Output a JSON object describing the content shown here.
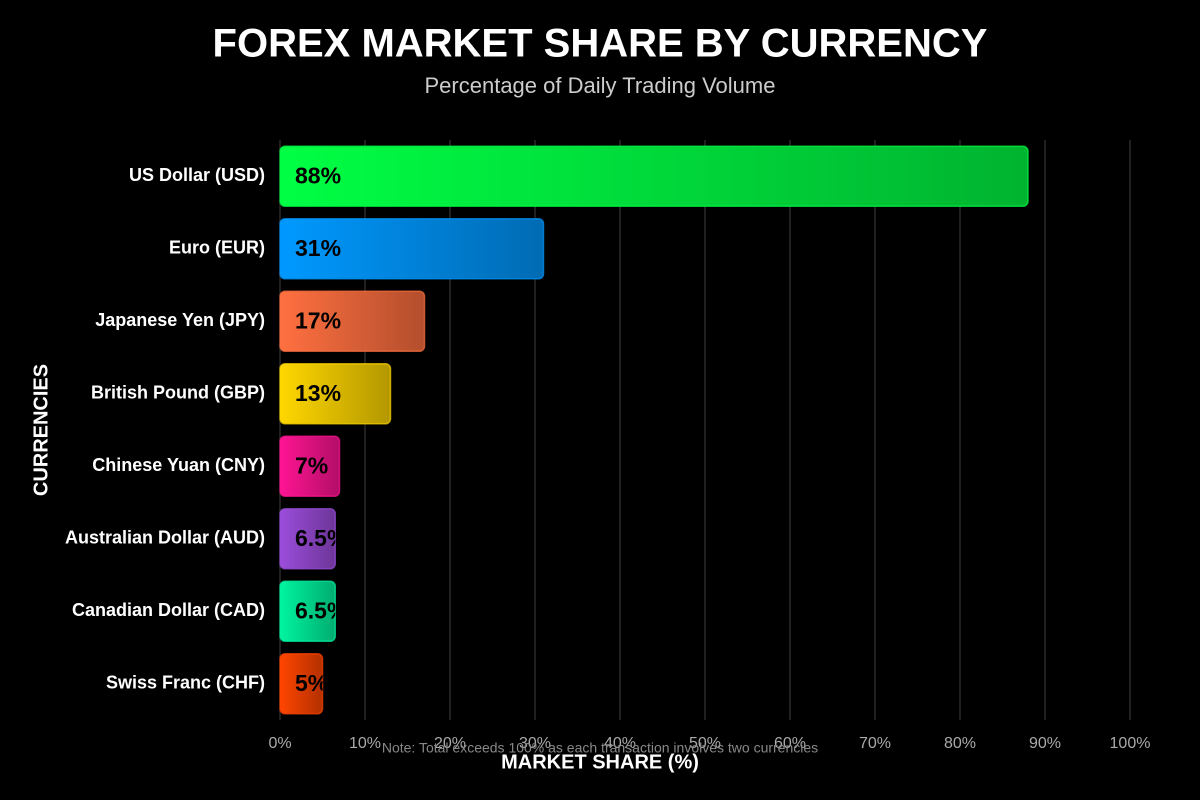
{
  "chart_data": {
    "type": "bar",
    "orientation": "horizontal",
    "title": "FOREX MARKET SHARE BY CURRENCY",
    "subtitle": "Percentage of Daily Trading Volume",
    "x_label": "MARKET SHARE (%)",
    "y_label": "CURRENCIES",
    "note": "Note: Total exceeds 100% as each transaction involves two currencies",
    "categories": [
      "US Dollar (USD)",
      "Euro (EUR)",
      "Japanese Yen (JPY)",
      "British Pound (GBP)",
      "Chinese Yuan (CNY)",
      "Australian Dollar (AUD)",
      "Canadian Dollar (CAD)",
      "Swiss Franc (CHF)"
    ],
    "values": [
      88,
      31,
      17,
      13,
      7,
      6.5,
      6.5,
      5
    ],
    "value_labels": [
      "88%",
      "31%",
      "17%",
      "13%",
      "7%",
      "6.5%",
      "6.5%",
      "5%"
    ],
    "colors": [
      "#00ff44",
      "#0099ff",
      "#ff7040",
      "#ffd700",
      "#ff1493",
      "#9b4ddb",
      "#00f5a0",
      "#ff4500"
    ],
    "xlim": [
      0,
      100
    ],
    "xticks": [
      {
        "value": 0,
        "label": "0%"
      },
      {
        "value": 10,
        "label": "10%"
      },
      {
        "value": 20,
        "label": "20%"
      },
      {
        "value": 30,
        "label": "30%"
      },
      {
        "value": 40,
        "label": "40%"
      },
      {
        "value": 50,
        "label": "50%"
      },
      {
        "value": 60,
        "label": "60%"
      },
      {
        "value": 70,
        "label": "70%"
      },
      {
        "value": 80,
        "label": "80%"
      },
      {
        "value": 90,
        "label": "90%"
      },
      {
        "value": 100,
        "label": "100%"
      }
    ],
    "grid": true
  }
}
